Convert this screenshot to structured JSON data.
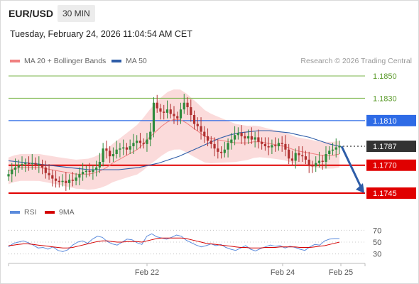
{
  "header": {
    "symbol": "EUR/USD",
    "timeframe": "30 MIN",
    "datetime": "Tuesday, February 24, 2026 11:04:54 AM CET"
  },
  "legend": {
    "ma20_label": "MA 20 + Bollinger Bands",
    "ma50_label": "MA 50",
    "credit": "Research © 2026 Trading Central",
    "rsi_label": "RSI",
    "ma9_label": "9MA"
  },
  "colors": {
    "ma20": "#f08080",
    "band_fill": "#f9cfcf",
    "ma50": "#2e5da8",
    "resistance_green": "#7ab648",
    "pivot_blue": "#2e6be6",
    "support_red": "#e00000",
    "current": "#333333",
    "arrow": "#2e5da8",
    "candle_green": "#2e8b3c",
    "candle_red": "#b03030",
    "rsi": "#5b8bdc",
    "ma9": "#d40000"
  },
  "chart_data": {
    "type": "candlestick",
    "x_tick_labels": [
      "Feb 22",
      "Feb 24",
      "Feb 25"
    ],
    "ylim": [
      1.1735,
      1.1855
    ],
    "levels": [
      {
        "label": "1.1850",
        "value": 1.185,
        "kind": "resistance"
      },
      {
        "label": "1.1830",
        "value": 1.183,
        "kind": "resistance"
      },
      {
        "label": "1.1810",
        "value": 1.181,
        "kind": "pivot"
      },
      {
        "label": "1.1787",
        "value": 1.1787,
        "kind": "current"
      },
      {
        "label": "1.1770",
        "value": 1.177,
        "kind": "support"
      },
      {
        "label": "1.1745",
        "value": 1.1745,
        "kind": "support"
      }
    ],
    "forecast_arrow": {
      "from": 1.1787,
      "to": 1.1745,
      "direction": "down"
    },
    "close": [
      1.1762,
      1.1766,
      1.1768,
      1.177,
      1.1771,
      1.1772,
      1.1771,
      1.1772,
      1.177,
      1.1771,
      1.1768,
      1.1763,
      1.1761,
      1.1758,
      1.1756,
      1.1755,
      1.1756,
      1.1754,
      1.1757,
      1.1756,
      1.1759,
      1.1762,
      1.1764,
      1.1765,
      1.1764,
      1.1766,
      1.1768,
      1.1773,
      1.1785,
      1.1783,
      1.1778,
      1.178,
      1.1784,
      1.1785,
      1.1786,
      1.1784,
      1.1787,
      1.179,
      1.1792,
      1.179,
      1.1789,
      1.1793,
      1.18,
      1.1826,
      1.1821,
      1.1818,
      1.1817,
      1.182,
      1.1816,
      1.1814,
      1.1812,
      1.182,
      1.1826,
      1.1822,
      1.1815,
      1.1807,
      1.1805,
      1.18,
      1.1796,
      1.1792,
      1.1789,
      1.1785,
      1.1782,
      1.1781,
      1.1784,
      1.179,
      1.1793,
      1.1797,
      1.1799,
      1.1796,
      1.1794,
      1.1796,
      1.1793,
      1.1795,
      1.1791,
      1.1789,
      1.1787,
      1.1786,
      1.1788,
      1.1787,
      1.179,
      1.1789,
      1.1784,
      1.1776,
      1.1774,
      1.1781,
      1.1779,
      1.1778,
      1.1775,
      1.177,
      1.1769,
      1.1772,
      1.1774,
      1.1773,
      1.178,
      1.1783,
      1.1784,
      1.1786,
      1.1787
    ],
    "ma20": [
      1.1765,
      1.1767,
      1.1768,
      1.1768,
      1.1768,
      1.1768,
      1.1767,
      1.1766,
      1.1765,
      1.1764,
      1.1763,
      1.1762,
      1.1762,
      1.1762,
      1.1763,
      1.1765,
      1.1768,
      1.1772,
      1.1775,
      1.1778,
      1.1781,
      1.1784,
      1.1789,
      1.1795,
      1.18,
      1.1805,
      1.1809,
      1.1811,
      1.1811,
      1.1808,
      1.1804,
      1.18,
      1.1796,
      1.1794,
      1.1793,
      1.1792,
      1.1791,
      1.179,
      1.179,
      1.179,
      1.1791,
      1.1791,
      1.179,
      1.1789,
      1.1788,
      1.1787,
      1.1785,
      1.1783,
      1.1782,
      1.1781,
      1.178,
      1.1779,
      1.1779,
      1.1779,
      1.178
    ],
    "ma50": [
      1.1774,
      1.1773,
      1.1772,
      1.1771,
      1.177,
      1.1769,
      1.1768,
      1.1767,
      1.1766,
      1.1766,
      1.1766,
      1.1766,
      1.1767,
      1.1768,
      1.177,
      1.1772,
      1.1775,
      1.1778,
      1.1782,
      1.1786,
      1.179,
      1.1794,
      1.1797,
      1.1799,
      1.18,
      1.1801,
      1.1801,
      1.18,
      1.1799,
      1.1797,
      1.1795,
      1.1792,
      1.1789,
      1.1787
    ],
    "rsi_panel": {
      "y_ticks": [
        "70",
        "50",
        "30"
      ],
      "ylim": [
        20,
        80
      ],
      "rsi": [
        42,
        48,
        50,
        52,
        49,
        45,
        40,
        41,
        38,
        42,
        36,
        34,
        37,
        45,
        50,
        52,
        48,
        55,
        60,
        58,
        51,
        47,
        45,
        50,
        55,
        54,
        49,
        46,
        60,
        64,
        59,
        57,
        55,
        58,
        62,
        60,
        53,
        49,
        45,
        42,
        44,
        47,
        44,
        46,
        41,
        38,
        36,
        40,
        44,
        38,
        35,
        39,
        42,
        45,
        43,
        44,
        40,
        43,
        41,
        38,
        36,
        42,
        46,
        45,
        52,
        55,
        56,
        56
      ],
      "ma9": [
        44,
        45,
        46,
        47,
        47,
        46,
        45,
        44,
        43,
        42,
        41,
        40,
        40,
        41,
        43,
        45,
        47,
        49,
        51,
        52,
        52,
        51,
        50,
        50,
        51,
        51,
        51,
        50,
        52,
        54,
        56,
        57,
        57,
        57,
        57,
        57,
        56,
        54,
        52,
        50,
        48,
        47,
        46,
        45,
        44,
        43,
        42,
        41,
        41,
        40,
        40,
        40,
        41,
        41,
        41,
        42,
        42,
        42,
        42,
        41,
        41,
        41,
        42,
        43,
        44,
        46,
        48,
        50
      ]
    }
  }
}
